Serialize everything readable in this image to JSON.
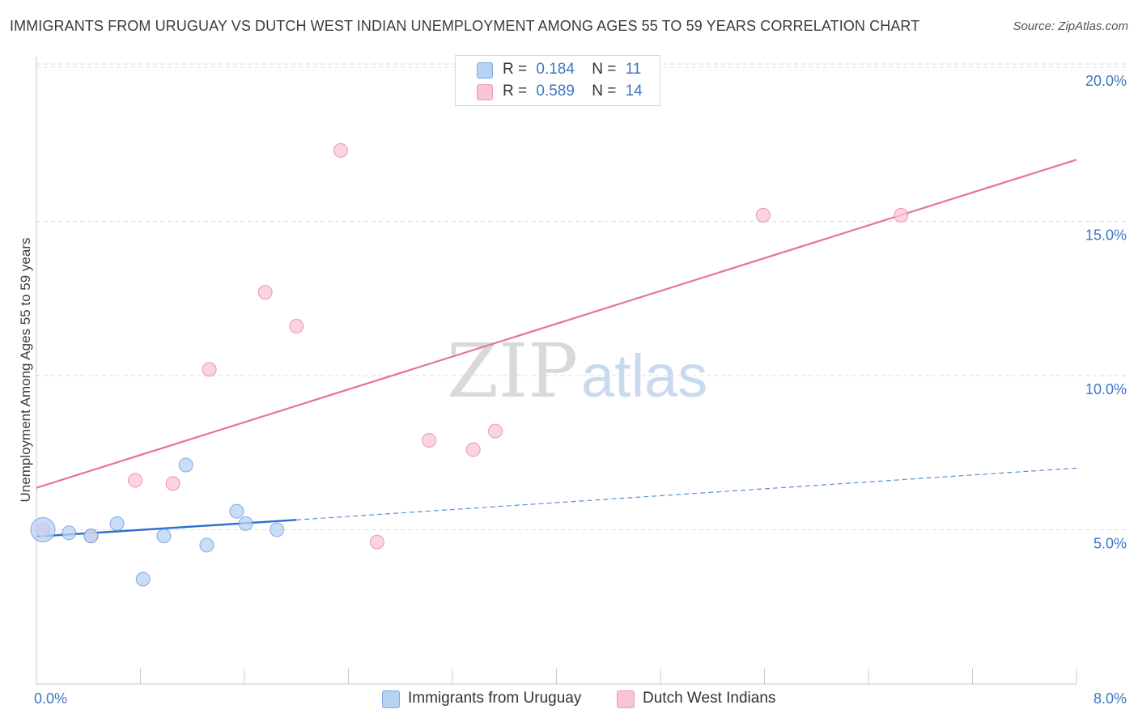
{
  "title": "IMMIGRANTS FROM URUGUAY VS DUTCH WEST INDIAN UNEMPLOYMENT AMONG AGES 55 TO 59 YEARS CORRELATION CHART",
  "source": "Source: ZipAtlas.com",
  "watermark": {
    "zip": "ZIP",
    "atlas": "atlas"
  },
  "legend": {
    "rows": [
      {
        "r_label": "R =",
        "r_value": "0.184",
        "n_label": "N =",
        "n_value": "11",
        "color": "#b8d2f3",
        "border": "#7aaae0"
      },
      {
        "r_label": "R =",
        "r_value": "0.589",
        "n_label": "N =",
        "n_value": "14",
        "color": "#f9c5d5",
        "border": "#ee9ab5"
      }
    ]
  },
  "bottom_legend": [
    {
      "label": "Immigrants from Uruguay",
      "color": "#b8d2f3",
      "border": "#7aaae0"
    },
    {
      "label": "Dutch West Indians",
      "color": "#f9c5d5",
      "border": "#ee9ab5"
    }
  ],
  "chart_data": {
    "type": "scatter",
    "title": "IMMIGRANTS FROM URUGUAY VS DUTCH WEST INDIAN UNEMPLOYMENT AMONG AGES 55 TO 59 YEARS CORRELATION CHART",
    "xlabel": "",
    "ylabel": "Unemployment Among Ages 55 to 59 years",
    "xlim": [
      0,
      8
    ],
    "ylim": [
      0,
      20.5
    ],
    "x_tick_labels": [
      {
        "value": 0,
        "label": "0.0%"
      },
      {
        "value": 8,
        "label": "8.0%"
      }
    ],
    "y_tick_labels": [
      {
        "value": 5,
        "label": "5.0%"
      },
      {
        "value": 10,
        "label": "10.0%"
      },
      {
        "value": 15,
        "label": "15.0%"
      },
      {
        "value": 20,
        "label": "20.0%"
      }
    ],
    "grid": true,
    "series": [
      {
        "name": "Immigrants from Uruguay",
        "color": "#5a8fd8",
        "fill": "#b8d2f3",
        "points": [
          {
            "x": 0.05,
            "y": 5.0,
            "large": true
          },
          {
            "x": 0.25,
            "y": 4.9
          },
          {
            "x": 0.42,
            "y": 4.8
          },
          {
            "x": 0.62,
            "y": 5.2
          },
          {
            "x": 0.82,
            "y": 3.4
          },
          {
            "x": 0.98,
            "y": 4.8
          },
          {
            "x": 1.15,
            "y": 7.1
          },
          {
            "x": 1.31,
            "y": 4.5
          },
          {
            "x": 1.54,
            "y": 5.6
          },
          {
            "x": 1.61,
            "y": 5.2
          },
          {
            "x": 1.85,
            "y": 5.0
          }
        ],
        "trend": {
          "x0": 0.0,
          "y0": 4.78,
          "x1": 2.0,
          "y1": 5.32,
          "dashed_to_x": 8.0,
          "dashed_to_y": 7.0
        }
      },
      {
        "name": "Dutch West Indians",
        "color": "#e5739b",
        "fill": "#f9c5d5",
        "points": [
          {
            "x": 0.05,
            "y": 5.0
          },
          {
            "x": 0.42,
            "y": 4.8
          },
          {
            "x": 0.76,
            "y": 6.6
          },
          {
            "x": 1.05,
            "y": 6.5
          },
          {
            "x": 1.33,
            "y": 10.2
          },
          {
            "x": 1.76,
            "y": 12.7
          },
          {
            "x": 2.0,
            "y": 11.6
          },
          {
            "x": 2.34,
            "y": 17.3
          },
          {
            "x": 2.62,
            "y": 4.6
          },
          {
            "x": 3.02,
            "y": 7.9
          },
          {
            "x": 3.36,
            "y": 7.6
          },
          {
            "x": 3.53,
            "y": 8.2
          },
          {
            "x": 5.59,
            "y": 15.2
          },
          {
            "x": 6.65,
            "y": 15.2
          }
        ],
        "trend": {
          "x0": 0.0,
          "y0": 6.36,
          "x1": 8.0,
          "y1": 17.0
        }
      }
    ]
  }
}
